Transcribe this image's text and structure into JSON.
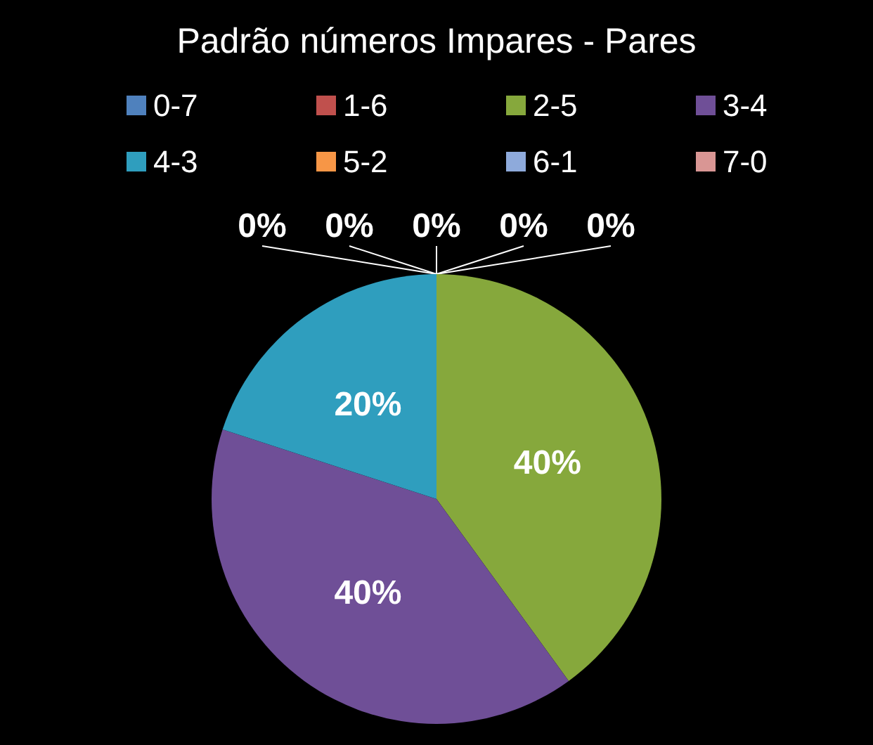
{
  "chart_data": {
    "type": "pie",
    "title": "Padrão números Impares - Pares",
    "categories": [
      "0-7",
      "1-6",
      "2-5",
      "3-4",
      "4-3",
      "5-2",
      "6-1",
      "7-0"
    ],
    "values": [
      0,
      0,
      40,
      40,
      20,
      0,
      0,
      0
    ],
    "value_labels": [
      "0%",
      "0%",
      "40%",
      "40%",
      "20%",
      "0%",
      "0%",
      "0%"
    ],
    "colors": [
      "#4f81bd",
      "#c0504d",
      "#86a83c",
      "#6f4f97",
      "#2f9ebe",
      "#f79646",
      "#8eaadb",
      "#d99694"
    ],
    "legend": "top"
  }
}
